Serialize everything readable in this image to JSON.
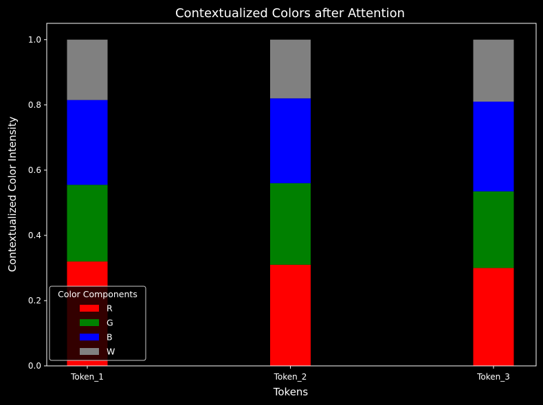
{
  "chart_data": {
    "type": "bar",
    "stacked": true,
    "title": "Contextualized Colors after Attention",
    "xlabel": "Tokens",
    "ylabel": "Contextualized Color Intensity",
    "categories": [
      "Token_1",
      "Token_2",
      "Token_3"
    ],
    "ylim": [
      0,
      1.05
    ],
    "yticks": [
      "0.0",
      "0.2",
      "0.4",
      "0.6",
      "0.8",
      "1.0"
    ],
    "grid": false,
    "legend": {
      "title": "Color Components",
      "placement": "lower-left"
    },
    "series": [
      {
        "name": "R",
        "color": "#ff0000",
        "values": [
          0.32,
          0.31,
          0.3
        ]
      },
      {
        "name": "G",
        "color": "#008000",
        "values": [
          0.235,
          0.25,
          0.235
        ]
      },
      {
        "name": "B",
        "color": "#0000ff",
        "values": [
          0.26,
          0.26,
          0.275
        ]
      },
      {
        "name": "W",
        "color": "#808080",
        "values": [
          0.185,
          0.18,
          0.19
        ]
      }
    ],
    "background": "#000000",
    "foreground": "#ffffff"
  }
}
